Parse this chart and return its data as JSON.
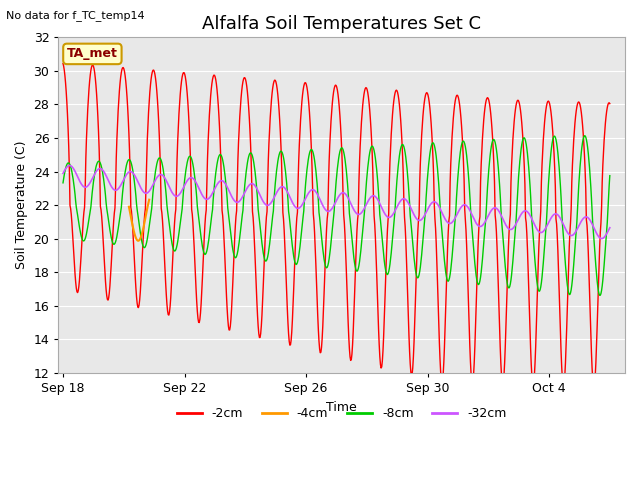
{
  "title": "Alfalfa Soil Temperatures Set C",
  "no_data_text": "No data for f_TC_temp14",
  "ta_met_label": "TA_met",
  "xlabel": "Time",
  "ylabel": "Soil Temperature (C)",
  "ylim": [
    12,
    32
  ],
  "xlim_days": [
    -0.15,
    18.5
  ],
  "x_ticks_labels": [
    "Sep 18",
    "Sep 22",
    "Sep 26",
    "Sep 30",
    "Oct 4"
  ],
  "x_ticks_days": [
    0,
    4,
    8,
    12,
    16
  ],
  "series_colors": {
    "-2cm": "#ff0000",
    "-4cm": "#ff9900",
    "-8cm": "#00cc00",
    "-32cm": "#cc55ff"
  },
  "background_color": "#e8e8e8",
  "fig_background": "#ffffff",
  "grid_color": "#ffffff",
  "title_fontsize": 13,
  "axis_label_fontsize": 9,
  "tick_label_fontsize": 9
}
